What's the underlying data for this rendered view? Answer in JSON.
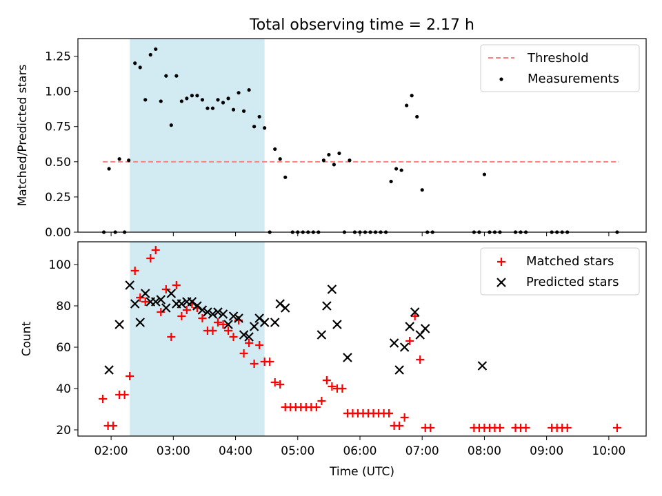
{
  "title": "Total observing time = 2.17 h",
  "xlabel": "Time (UTC)",
  "xticks": [
    "02:00",
    "03:00",
    "04:00",
    "05:00",
    "06:00",
    "07:00",
    "08:00",
    "09:00",
    "10:00"
  ],
  "shaded_interval": {
    "start": "02:18",
    "end": "04:28",
    "color": "#add8e6"
  },
  "colors": {
    "threshold": "#ff7f7f",
    "measurements": "#000000",
    "matched": "#ff0000",
    "predicted": "#000000"
  },
  "chart_data": [
    {
      "type": "scatter",
      "ylabel": "Matched/Predicted stars",
      "ylim": [
        0,
        1.375
      ],
      "yticks": [
        "0.00",
        "0.25",
        "0.50",
        "0.75",
        "1.00",
        "1.25"
      ],
      "legend": [
        "Threshold",
        "Measurements"
      ],
      "legend_position": "top-right",
      "series": [
        {
          "name": "Threshold",
          "kind": "dashed-line",
          "x": [
            "01:52",
            "10:10"
          ],
          "y": [
            0.5,
            0.5
          ]
        },
        {
          "name": "Measurements",
          "kind": "dots",
          "x": [
            "01:53",
            "01:58",
            "02:04",
            "02:08",
            "02:13",
            "02:17",
            "02:23",
            "02:28",
            "02:33",
            "02:38",
            "02:43",
            "02:48",
            "02:53",
            "02:58",
            "03:03",
            "03:08",
            "03:13",
            "03:18",
            "03:23",
            "03:28",
            "03:33",
            "03:38",
            "03:43",
            "03:48",
            "03:53",
            "03:58",
            "04:03",
            "04:08",
            "04:13",
            "04:18",
            "04:23",
            "04:28",
            "04:33",
            "04:38",
            "04:43",
            "04:48",
            "04:55",
            "05:00",
            "05:05",
            "05:10",
            "05:15",
            "05:20",
            "05:25",
            "05:30",
            "05:35",
            "05:40",
            "05:45",
            "05:50",
            "05:55",
            "06:00",
            "06:05",
            "06:10",
            "06:15",
            "06:20",
            "06:25",
            "06:30",
            "06:35",
            "06:40",
            "06:45",
            "06:50",
            "06:55",
            "07:00",
            "07:05",
            "07:10",
            "07:50",
            "07:55",
            "08:00",
            "08:05",
            "08:10",
            "08:15",
            "08:30",
            "08:35",
            "08:40",
            "09:05",
            "09:10",
            "09:15",
            "09:20",
            "10:08"
          ],
          "y": [
            0.0,
            0.45,
            0.0,
            0.52,
            0.0,
            0.51,
            1.2,
            1.17,
            0.94,
            1.26,
            1.3,
            0.93,
            1.11,
            0.76,
            1.11,
            0.93,
            0.95,
            0.97,
            0.97,
            0.94,
            0.88,
            0.88,
            0.94,
            0.92,
            0.95,
            0.87,
            0.99,
            0.86,
            1.01,
            0.75,
            0.82,
            0.74,
            0.0,
            0.59,
            0.52,
            0.39,
            0.0,
            0.0,
            0.0,
            0.0,
            0.0,
            0.0,
            0.51,
            0.55,
            0.48,
            0.56,
            0.0,
            0.51,
            0.0,
            0.0,
            0.0,
            0.0,
            0.0,
            0.0,
            0.0,
            0.36,
            0.45,
            0.44,
            0.9,
            0.97,
            0.82,
            0.3,
            0.0,
            0.0,
            0.0,
            0.0,
            0.41,
            0.0,
            0.0,
            0.0,
            0.0,
            0.0,
            0.0,
            0.0,
            0.0,
            0.0,
            0.0,
            0.0
          ]
        }
      ]
    },
    {
      "type": "scatter",
      "ylabel": "Count",
      "ylim": [
        17,
        111
      ],
      "yticks": [
        "20",
        "40",
        "60",
        "80",
        "100"
      ],
      "legend": [
        "Matched stars",
        "Predicted stars"
      ],
      "legend_position": "top-right",
      "series": [
        {
          "name": "Matched stars",
          "marker": "+",
          "x": [
            "01:52",
            "01:57",
            "02:02",
            "02:08",
            "02:13",
            "02:18",
            "02:23",
            "02:28",
            "02:33",
            "02:38",
            "02:43",
            "02:48",
            "02:53",
            "02:58",
            "03:03",
            "03:08",
            "03:13",
            "03:18",
            "03:23",
            "03:28",
            "03:33",
            "03:38",
            "03:43",
            "03:48",
            "03:53",
            "03:58",
            "04:03",
            "04:08",
            "04:13",
            "04:18",
            "04:23",
            "04:28",
            "04:33",
            "04:38",
            "04:43",
            "04:48",
            "04:53",
            "04:58",
            "05:03",
            "05:08",
            "05:13",
            "05:18",
            "05:23",
            "05:28",
            "05:33",
            "05:38",
            "05:43",
            "05:48",
            "05:53",
            "05:58",
            "06:03",
            "06:08",
            "06:13",
            "06:18",
            "06:23",
            "06:28",
            "06:33",
            "06:38",
            "06:43",
            "06:48",
            "06:53",
            "06:58",
            "07:03",
            "07:08",
            "07:50",
            "07:55",
            "08:00",
            "08:05",
            "08:10",
            "08:15",
            "08:30",
            "08:35",
            "08:40",
            "09:05",
            "09:10",
            "09:15",
            "09:20",
            "10:08"
          ],
          "y": [
            35,
            22,
            22,
            37,
            37,
            46,
            97,
            84,
            82,
            103,
            107,
            77,
            88,
            65,
            90,
            75,
            78,
            81,
            79,
            74,
            68,
            68,
            72,
            71,
            68,
            65,
            73,
            57,
            62,
            52,
            61,
            53,
            53,
            43,
            42,
            31,
            31,
            31,
            31,
            31,
            31,
            31,
            34,
            44,
            41,
            40,
            40,
            28,
            28,
            28,
            28,
            28,
            28,
            28,
            28,
            28,
            22,
            22,
            26,
            63,
            75,
            54,
            21,
            21,
            21,
            21,
            21,
            21,
            21,
            21,
            21,
            21,
            21,
            21,
            21,
            21,
            21,
            21
          ]
        },
        {
          "name": "Predicted stars",
          "marker": "x",
          "x": [
            "01:58",
            "02:08",
            "02:18",
            "02:23",
            "02:28",
            "02:33",
            "02:38",
            "02:43",
            "02:48",
            "02:53",
            "02:58",
            "03:03",
            "03:08",
            "03:13",
            "03:18",
            "03:23",
            "03:28",
            "03:33",
            "03:38",
            "03:43",
            "03:48",
            "03:53",
            "03:58",
            "04:03",
            "04:08",
            "04:13",
            "04:18",
            "04:23",
            "04:28",
            "04:38",
            "04:43",
            "04:48",
            "05:23",
            "05:28",
            "05:33",
            "05:38",
            "05:48",
            "06:33",
            "06:38",
            "06:43",
            "06:48",
            "06:53",
            "06:58",
            "07:03",
            "07:58"
          ],
          "y": [
            49,
            71,
            90,
            81,
            72,
            86,
            82,
            82,
            83,
            79,
            86,
            81,
            81,
            82,
            82,
            80,
            78,
            77,
            76,
            77,
            76,
            71,
            75,
            74,
            66,
            65,
            70,
            74,
            72,
            72,
            81,
            79,
            66,
            80,
            88,
            71,
            55,
            62,
            49,
            60,
            70,
            77,
            66,
            69,
            51
          ]
        }
      ]
    }
  ]
}
